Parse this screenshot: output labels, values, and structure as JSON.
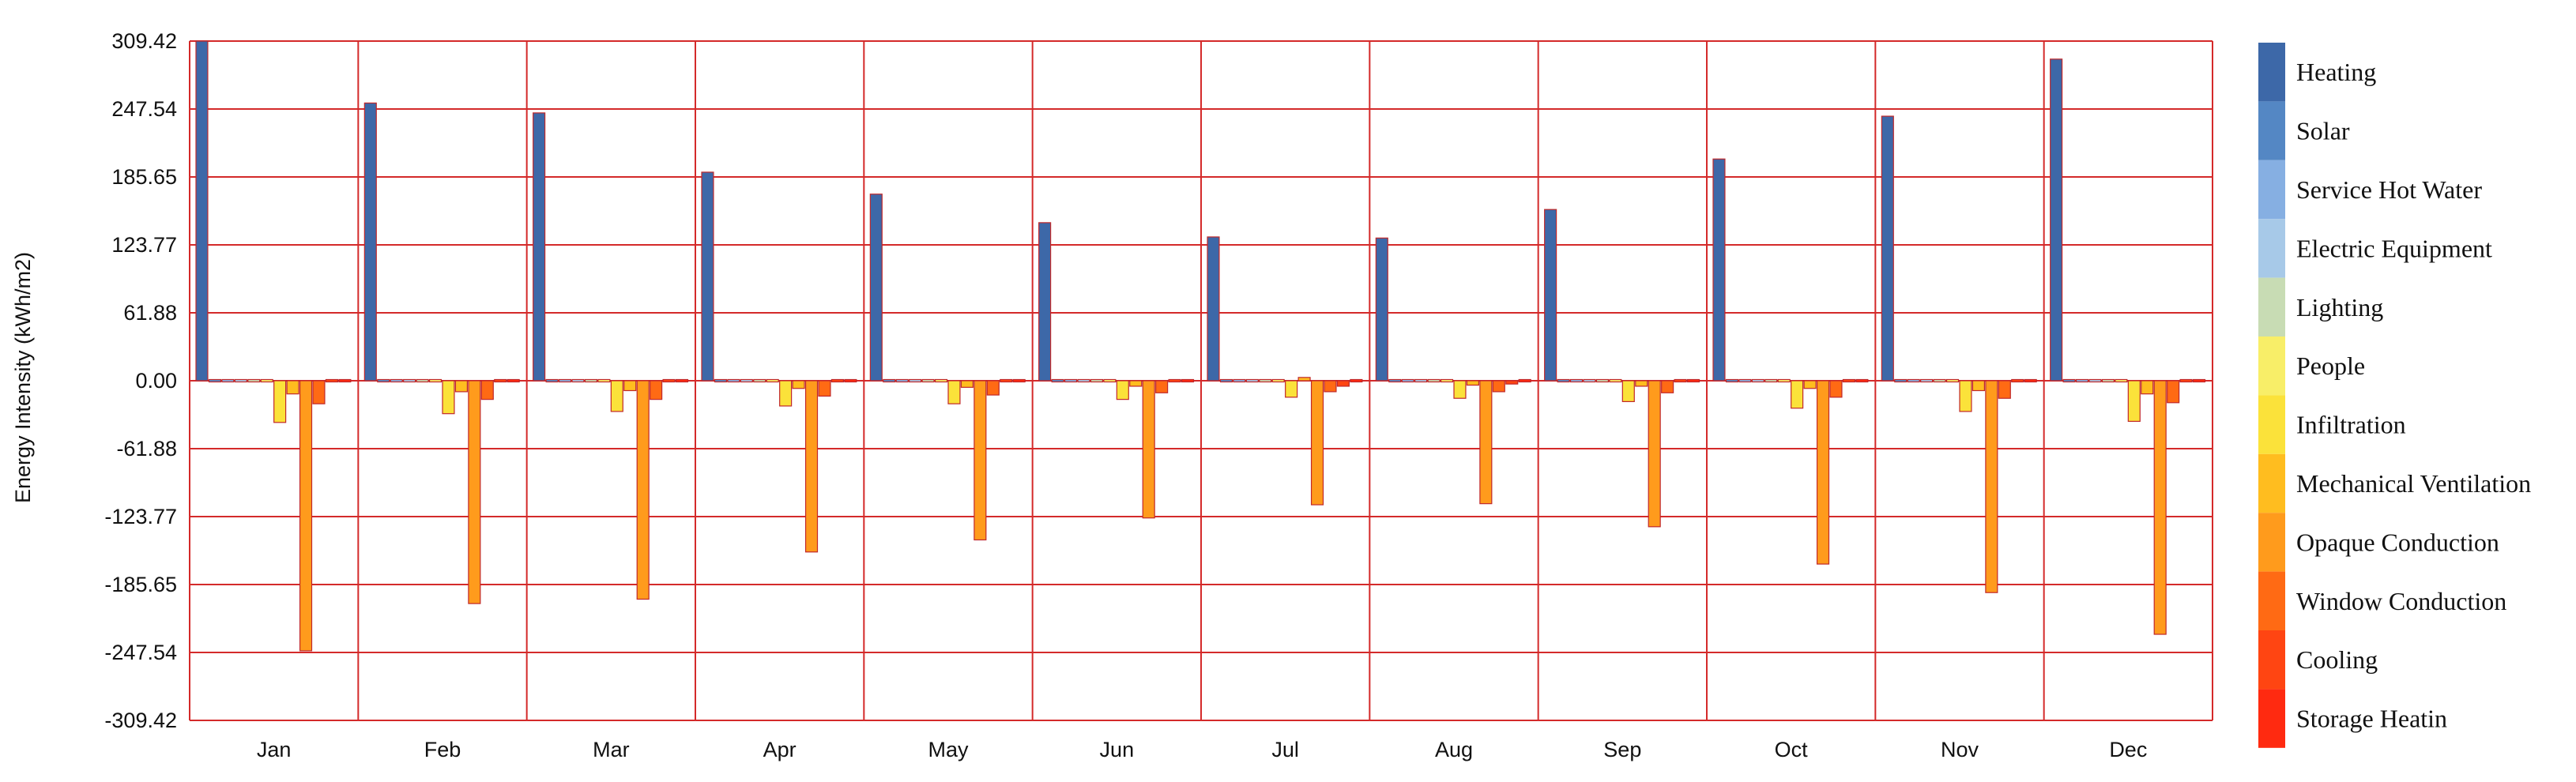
{
  "chart_data": {
    "type": "bar",
    "ylabel": "Energy Intensity (kWh/m2)",
    "ylim": [
      -309.42,
      309.42
    ],
    "yticks": [
      "309.42",
      "247.54",
      "185.65",
      "123.77",
      "61.88",
      "0.00",
      "-61.88",
      "-123.77",
      "-185.65",
      "-247.54",
      "-309.42"
    ],
    "grid": true,
    "legend_position": "right",
    "categories": [
      "Jan",
      "Feb",
      "Mar",
      "Apr",
      "May",
      "Jun",
      "Jul",
      "Aug",
      "Sep",
      "Oct",
      "Nov",
      "Dec"
    ],
    "series": [
      {
        "name": "Heating",
        "color": "#3d68a8",
        "values": [
          309.4,
          253,
          244,
          190,
          170,
          144,
          131,
          130,
          156,
          202,
          241,
          293
        ]
      },
      {
        "name": "Solar",
        "color": "#5487c4",
        "values": [
          2,
          1.5,
          2,
          1.5,
          1.5,
          1.2,
          1.2,
          1.2,
          1.5,
          1.5,
          1.5,
          1.8
        ]
      },
      {
        "name": "Service Hot Water",
        "color": "#86afe2",
        "values": [
          0.5,
          0.5,
          0.5,
          0.5,
          0.5,
          0.5,
          0.5,
          0.5,
          0.5,
          0.5,
          0.5,
          0.5
        ]
      },
      {
        "name": "Electric Equipment",
        "color": "#a7c9e8",
        "values": [
          0.3,
          0.3,
          0.3,
          0.3,
          0.3,
          0.3,
          0.3,
          0.3,
          0.3,
          0.3,
          0.3,
          0.3
        ]
      },
      {
        "name": "Lighting",
        "color": "#c8dcb4",
        "values": [
          0.3,
          0.3,
          0.3,
          0.3,
          0.3,
          0.3,
          0.3,
          0.3,
          0.3,
          0.3,
          0.3,
          0.3
        ]
      },
      {
        "name": "People",
        "color": "#f8ee68",
        "values": [
          0.5,
          0.5,
          0.5,
          0.5,
          0.5,
          0.5,
          0.5,
          0.5,
          0.5,
          0.5,
          0.5,
          0.5
        ]
      },
      {
        "name": "Infiltration",
        "color": "#fbe23a",
        "values": [
          -38,
          -30,
          -28,
          -23,
          -21,
          -17,
          -15,
          -16,
          -19,
          -25,
          -28,
          -37
        ]
      },
      {
        "name": "Mechanical Ventilation",
        "color": "#ffbd1f",
        "values": [
          -12,
          -10,
          -9,
          -7,
          -6,
          -5,
          3,
          -4,
          -5,
          -7,
          -9,
          -12
        ]
      },
      {
        "name": "Opaque Conduction",
        "color": "#ff9b1c",
        "values": [
          -246,
          -203,
          -199,
          -156,
          -145,
          -125,
          -113,
          -112,
          -133,
          -167,
          -193,
          -231
        ]
      },
      {
        "name": "Window Conduction",
        "color": "#ff6a14",
        "values": [
          -21,
          -17,
          -17,
          -14,
          -13,
          -11,
          -10,
          -10,
          -11,
          -15,
          -16,
          -20
        ]
      },
      {
        "name": "Cooling",
        "color": "#ff4512",
        "values": [
          -1,
          -1,
          -1,
          -1,
          -1,
          -1,
          -5,
          -3,
          -1,
          -1,
          -1,
          -1
        ]
      },
      {
        "name": "Storage Heatin",
        "color": "#ff2a10",
        "values": [
          0,
          0,
          0,
          0,
          0,
          0,
          0,
          0,
          0,
          0,
          0,
          0
        ]
      }
    ]
  }
}
